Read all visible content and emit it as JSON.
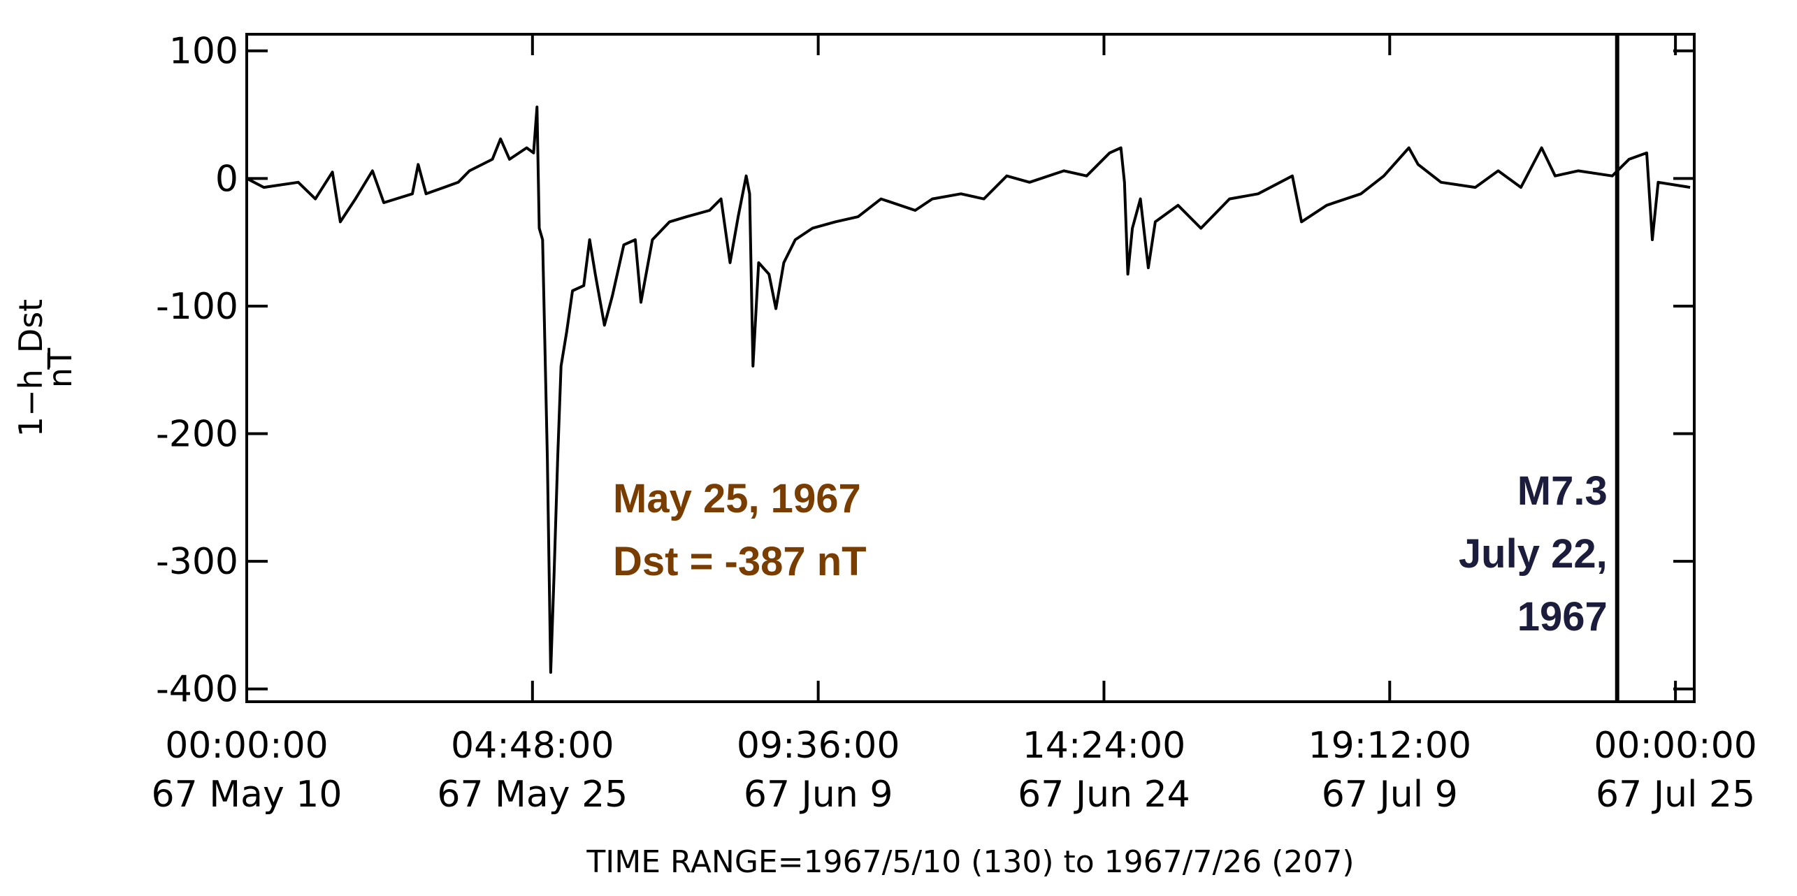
{
  "chart_data": {
    "type": "line",
    "y_label": [
      "1−h_Dst",
      "nT"
    ],
    "x_label": "TIME RANGE=1967/5/10 (130) to 1967/7/26 (207)",
    "xlim": [
      0,
      77
    ],
    "ylim": [
      -410,
      113
    ],
    "yticks": [
      -400,
      -300,
      -200,
      -100,
      0,
      100
    ],
    "xticks": [
      {
        "value": 0,
        "label": [
          "00:00:00",
          "67 May 10"
        ]
      },
      {
        "value": 15.2,
        "label": [
          "04:48:00",
          "67 May 25"
        ]
      },
      {
        "value": 30.4,
        "label": [
          "09:36:00",
          "67 Jun  9"
        ]
      },
      {
        "value": 45.6,
        "label": [
          "14:24:00",
          "67 Jun 24"
        ]
      },
      {
        "value": 60.8,
        "label": [
          "19:12:00",
          "67 Jul  9"
        ]
      },
      {
        "value": 76,
        "label": [
          "00:00:00",
          "67 Jul 25"
        ]
      }
    ],
    "series": [
      {
        "color": "#000000",
        "x": [
          0,
          0.91,
          2.74,
          3.65,
          4.56,
          4.98,
          5.78,
          6.69,
          7.29,
          8.81,
          9.12,
          9.54,
          11.25,
          11.85,
          13.07,
          13.5,
          13.98,
          14.89,
          15.26,
          15.44,
          15.56,
          15.74,
          15.99,
          16.17,
          16.35,
          16.54,
          16.72,
          17.02,
          17.33,
          17.93,
          18.24,
          18.54,
          19.03,
          19.45,
          20.06,
          20.67,
          20.97,
          21.58,
          22.49,
          23.4,
          24.62,
          25.23,
          25.71,
          26.14,
          26.57,
          26.75,
          26.93,
          27.23,
          27.78,
          28.15,
          28.57,
          29.18,
          30.09,
          31.31,
          32.52,
          33.74,
          35.56,
          36.47,
          37.99,
          39.21,
          40.43,
          41.64,
          43.47,
          44.68,
          45.9,
          46.5,
          46.69,
          46.87,
          47.11,
          47.54,
          47.96,
          48.33,
          49.54,
          50.76,
          52.28,
          53.8,
          55.62,
          56.11,
          57.45,
          59.27,
          60.49,
          61.82,
          62.31,
          63.53,
          65.35,
          66.57,
          67.78,
          68.88,
          69.6,
          70.82,
          72.64,
          73.53,
          74.47,
          74.77,
          75.08,
          76.78
        ],
        "values": [
          0,
          -7,
          -3,
          -16,
          5,
          -34,
          -16,
          6,
          -19,
          -12,
          11,
          -12,
          -3,
          6,
          15,
          31,
          15,
          24,
          20,
          56,
          -39,
          -48,
          -219,
          -387,
          -309,
          -219,
          -147,
          -120,
          -88,
          -84,
          -48,
          -75,
          -115,
          -92,
          -52,
          -48,
          -97,
          -48,
          -34,
          -30,
          -25,
          -16,
          -66,
          -30,
          2,
          -12,
          -147,
          -66,
          -75,
          -102,
          -66,
          -48,
          -39,
          -34,
          -30,
          -16,
          -25,
          -16,
          -12,
          -16,
          2,
          -3,
          6,
          2,
          20,
          24,
          -3,
          -75,
          -39,
          -16,
          -70,
          -34,
          -21,
          -39,
          -16,
          -12,
          2,
          -34,
          -21,
          -12,
          2,
          24,
          11,
          -3,
          -7,
          6,
          -7,
          24,
          2,
          6,
          2,
          15,
          20,
          -48,
          -3,
          -7
        ]
      }
    ],
    "annotations": [
      {
        "lines": [
          "May 25, 1967",
          "Dst = -387 nT"
        ],
        "color": "#7a3d00"
      },
      {
        "lines": [
          "M7.3",
          "July 22,",
          "1967"
        ],
        "color": "#1c1c3c",
        "x": 72.9
      }
    ]
  }
}
